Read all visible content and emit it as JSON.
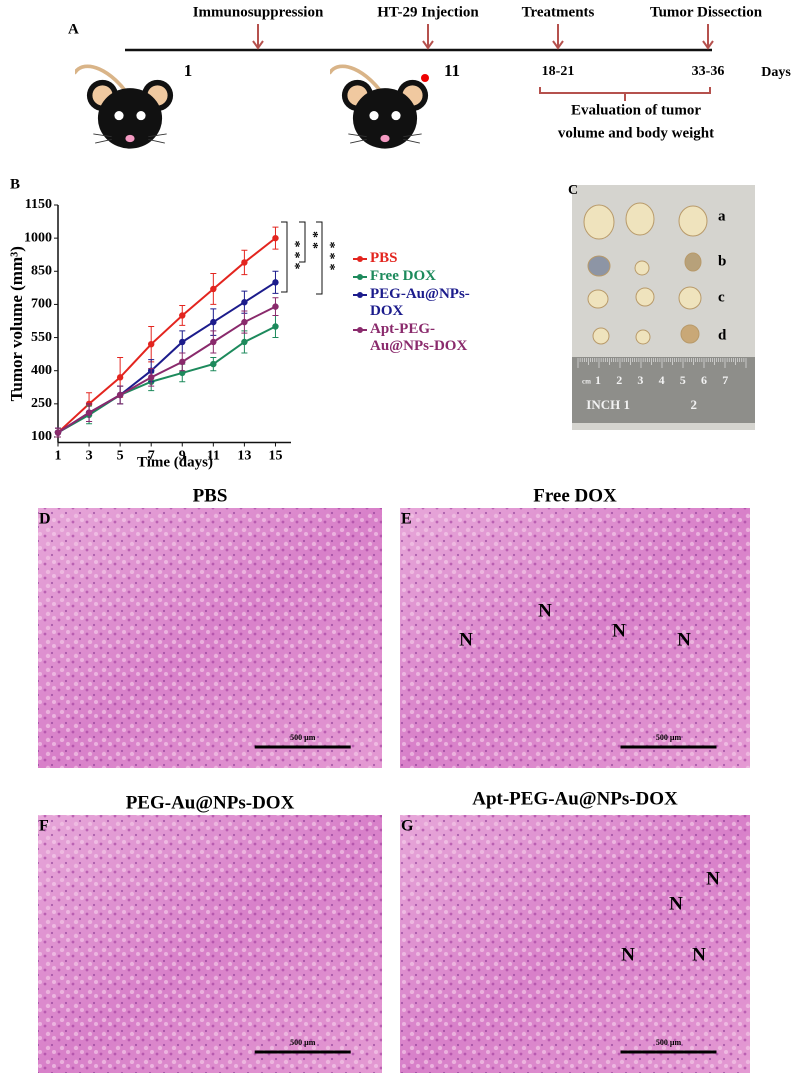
{
  "panel_a": {
    "letter": "A",
    "events": [
      "Immunosuppression",
      "HT-29 Injection",
      "Treatments",
      "Tumor Dissection"
    ],
    "days": [
      "1",
      "11",
      "18-21",
      "33-36"
    ],
    "days_label": "Days",
    "evaluation_lines": [
      "Evaluation of tumor",
      "volume and body weight"
    ]
  },
  "chart_data": {
    "type": "line",
    "letter": "B",
    "x_label": "Time (days)",
    "y_label": "Tumor volume (mm³)",
    "x": [
      1,
      3,
      5,
      7,
      9,
      11,
      13,
      15
    ],
    "xlim": [
      1,
      16
    ],
    "xticks": [
      1,
      3,
      5,
      7,
      9,
      11,
      13,
      15
    ],
    "ylim": [
      75,
      1150
    ],
    "yticks": [
      100,
      250,
      400,
      550,
      700,
      850,
      1000,
      1150
    ],
    "series": [
      {
        "name": "PBS",
        "color": "#e3251f",
        "values": [
          120,
          250,
          370,
          520,
          650,
          770,
          890,
          1000
        ],
        "errors": [
          20,
          50,
          90,
          80,
          45,
          70,
          55,
          50
        ]
      },
      {
        "name": "Free DOX",
        "color": "#1d8a5c",
        "values": [
          120,
          200,
          290,
          350,
          390,
          430,
          530,
          600
        ],
        "errors": [
          20,
          40,
          40,
          40,
          40,
          30,
          50,
          50
        ]
      },
      {
        "name": "PEG-Au@NPs-DOX",
        "color": "#1c1c8c",
        "values": [
          120,
          210,
          290,
          400,
          530,
          620,
          710,
          800
        ],
        "errors": [
          20,
          40,
          40,
          50,
          50,
          60,
          50,
          50
        ]
      },
      {
        "name": "Apt-PEG-Au@NPs-DOX",
        "color": "#8a2a6c",
        "values": [
          120,
          210,
          290,
          370,
          440,
          530,
          620,
          690
        ],
        "errors": [
          20,
          40,
          40,
          40,
          40,
          50,
          50,
          40
        ]
      }
    ],
    "annotations": [
      "***",
      "**",
      "***"
    ]
  },
  "panel_c": {
    "letter": "C",
    "row_labels": [
      "a",
      "b",
      "c",
      "d"
    ],
    "ruler_cm": [
      "1",
      "2",
      "3",
      "4",
      "5",
      "6",
      "7"
    ],
    "ruler_unit": "cm",
    "ruler_inch": [
      "INCH 1",
      "2"
    ]
  },
  "histology": [
    {
      "letter": "D",
      "title": "PBS",
      "labels": [],
      "scale_bar": "500 µm"
    },
    {
      "letter": "E",
      "title": "Free DOX",
      "labels": [
        "N",
        "N",
        "N",
        "N"
      ],
      "scale_bar": "500 µm"
    },
    {
      "letter": "F",
      "title": "PEG-Au@NPs-DOX",
      "labels": [],
      "scale_bar": "500 µm"
    },
    {
      "letter": "G",
      "title": "Apt-PEG-Au@NPs-DOX",
      "labels": [
        "N",
        "N",
        "N",
        "N"
      ],
      "scale_bar": "500 µm"
    }
  ]
}
